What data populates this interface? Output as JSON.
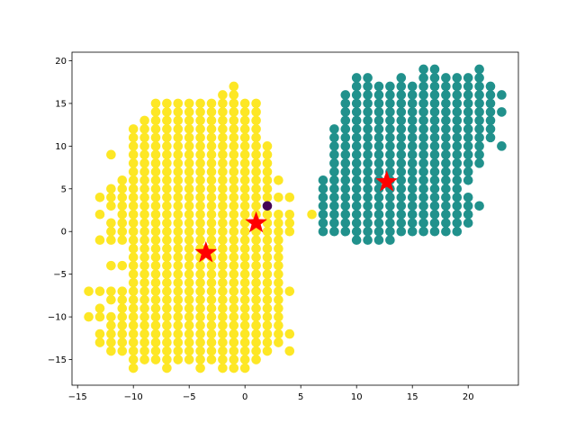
{
  "chart_data": {
    "type": "scatter",
    "title": "",
    "xlabel": "",
    "ylabel": "",
    "xlim": [
      -15.5,
      24.5
    ],
    "ylim": [
      -18,
      21
    ],
    "x_ticks": [
      -15,
      -10,
      -5,
      0,
      5,
      10,
      15,
      20
    ],
    "y_ticks": [
      -15,
      -10,
      -5,
      0,
      5,
      10,
      15,
      20
    ],
    "x_tick_labels": [
      "−15",
      "−10",
      "−5",
      "0",
      "5",
      "10",
      "15",
      "20"
    ],
    "y_tick_labels": [
      "−15",
      "−10",
      "−5",
      "0",
      "5",
      "10",
      "15",
      "20"
    ],
    "grid": false,
    "series": [
      {
        "color": "#fde725",
        "columns": [
          {
            "x": -14,
            "ys": [
              -10,
              -7
            ]
          },
          {
            "x": -13,
            "ys": [
              -13,
              -12,
              -10,
              -9,
              -7,
              -1,
              2,
              4
            ]
          },
          {
            "x": -12,
            "ys": [
              -14,
              -13,
              -12,
              -11,
              -10,
              -8,
              -7,
              -4,
              -1,
              0,
              1,
              3,
              4,
              5,
              9
            ]
          },
          {
            "x": -11,
            "ys": [
              -14,
              -13,
              -12,
              -11,
              -10,
              -9,
              -8,
              -7,
              -4,
              -1,
              0,
              1,
              2,
              3,
              4,
              5,
              6
            ]
          },
          {
            "x": -10,
            "ys_range": [
              -16,
              12
            ]
          },
          {
            "x": -9,
            "ys_range": [
              -15,
              13
            ]
          },
          {
            "x": -8,
            "ys_range": [
              -15,
              15
            ]
          },
          {
            "x": -7,
            "ys_range": [
              -16,
              15
            ]
          },
          {
            "x": -6,
            "ys_range": [
              -15,
              15
            ]
          },
          {
            "x": -5,
            "ys_range": [
              -15,
              15
            ]
          },
          {
            "x": -4,
            "ys_range": [
              -16,
              15
            ]
          },
          {
            "x": -3,
            "ys_range": [
              -15,
              15
            ]
          },
          {
            "x": -2,
            "ys_range": [
              -16,
              16
            ]
          },
          {
            "x": -1,
            "ys_range": [
              -16,
              17
            ]
          },
          {
            "x": 0,
            "ys_range": [
              -16,
              15
            ]
          },
          {
            "x": 1,
            "ys_range": [
              -15,
              15
            ]
          },
          {
            "x": 2,
            "ys": [
              -14,
              -13,
              -12,
              -11,
              -10,
              -9,
              -8,
              -7,
              -6,
              -5,
              -4,
              -3,
              -2,
              -1,
              0,
              1,
              2,
              4,
              5,
              6,
              7,
              8,
              9,
              10
            ]
          },
          {
            "x": 3,
            "ys": [
              -13,
              -12,
              -11,
              -10,
              -9,
              -8,
              -7,
              -6,
              -5,
              -4,
              -3,
              -2,
              -1,
              0,
              1,
              2,
              4,
              6
            ]
          },
          {
            "x": 4,
            "ys": [
              -14,
              -12,
              -7,
              0,
              1,
              2,
              4
            ]
          },
          {
            "x": 6,
            "ys": [
              2
            ]
          }
        ]
      },
      {
        "color": "#21918c",
        "columns": [
          {
            "x": 7,
            "ys_range": [
              0,
              6
            ]
          },
          {
            "x": 8,
            "ys_range": [
              0,
              12
            ]
          },
          {
            "x": 9,
            "ys_range": [
              0,
              16
            ]
          },
          {
            "x": 10,
            "ys_range": [
              -1,
              18
            ]
          },
          {
            "x": 11,
            "ys_range": [
              -1,
              18
            ]
          },
          {
            "x": 12,
            "ys_range": [
              -1,
              17
            ]
          },
          {
            "x": 13,
            "ys_range": [
              -1,
              17
            ]
          },
          {
            "x": 14,
            "ys_range": [
              0,
              18
            ]
          },
          {
            "x": 15,
            "ys_range": [
              0,
              17
            ]
          },
          {
            "x": 16,
            "ys_range": [
              0,
              19
            ]
          },
          {
            "x": 17,
            "ys_range": [
              0,
              19
            ]
          },
          {
            "x": 18,
            "ys_range": [
              0,
              18
            ]
          },
          {
            "x": 19,
            "ys_range": [
              0,
              18
            ]
          },
          {
            "x": 20,
            "ys": [
              1,
              2,
              3,
              4,
              6,
              7,
              8,
              9,
              10,
              11,
              12,
              13,
              14,
              15,
              16,
              17,
              18
            ]
          },
          {
            "x": 21,
            "ys": [
              3,
              8,
              9,
              10,
              11,
              12,
              13,
              14,
              15,
              16,
              17,
              18,
              19
            ]
          },
          {
            "x": 22,
            "ys": [
              11,
              12,
              13,
              14,
              15,
              16,
              17
            ]
          },
          {
            "x": 23,
            "ys": [
              10,
              14,
              16
            ]
          }
        ]
      },
      {
        "color": "#440154",
        "points": [
          [
            2,
            3
          ]
        ]
      }
    ],
    "markers": {
      "color": "#ff0000",
      "shape": "star",
      "points": [
        [
          -3.5,
          -2.5
        ],
        [
          1,
          1
        ],
        [
          12.7,
          5.8
        ]
      ]
    }
  }
}
